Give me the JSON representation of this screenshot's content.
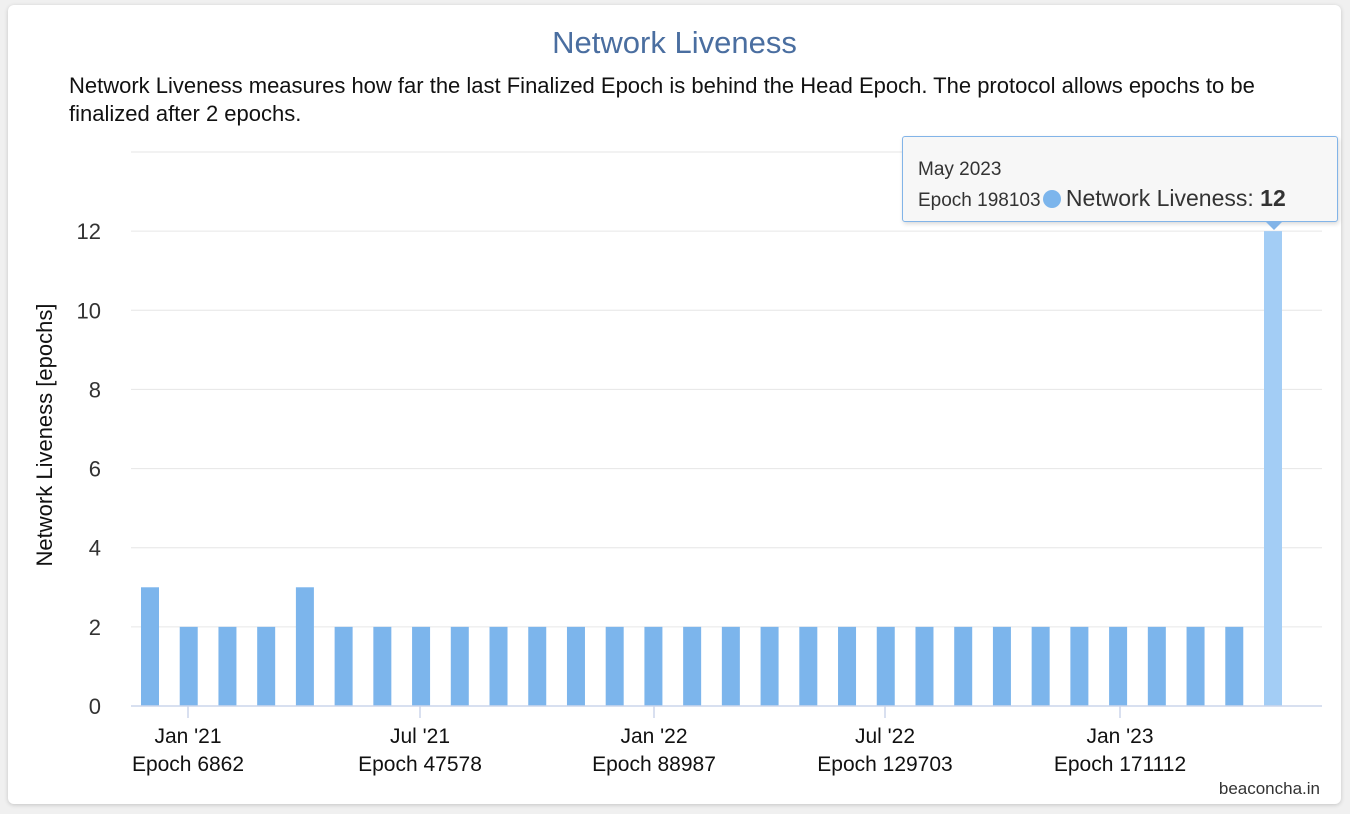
{
  "chart_data": {
    "type": "bar",
    "title": "Network Liveness",
    "subtitle": "Network Liveness measures how far the last Finalized Epoch is behind the Head Epoch. The protocol allows epochs to be finalized after 2 epochs.",
    "ylabel": "Network Liveness [epochs]",
    "ylim": [
      0,
      14
    ],
    "yticks": [
      0,
      2,
      4,
      6,
      8,
      10,
      12
    ],
    "grid": true,
    "legend": "none",
    "series": [
      {
        "name": "Network Liveness",
        "color": "#7cb5ec",
        "values": [
          3,
          2,
          2,
          2,
          3,
          2,
          2,
          2,
          2,
          2,
          2,
          2,
          2,
          2,
          2,
          2,
          2,
          2,
          2,
          2,
          2,
          2,
          2,
          2,
          2,
          2,
          2,
          2,
          2,
          12
        ]
      }
    ],
    "xtick_labels": [
      {
        "date": "Jan '21",
        "epoch": "Epoch 6862"
      },
      {
        "date": "Jul '21",
        "epoch": "Epoch 47578"
      },
      {
        "date": "Jan '22",
        "epoch": "Epoch 88987"
      },
      {
        "date": "Jul '22",
        "epoch": "Epoch 129703"
      },
      {
        "date": "Jan '23",
        "epoch": "Epoch 171112"
      }
    ],
    "tooltip": {
      "date": "May 2023",
      "epoch": "Epoch 198103",
      "series_name": "Network Liveness",
      "value": "12"
    },
    "highlight_color": "#a3cdf5",
    "credits": "beaconcha.in"
  }
}
